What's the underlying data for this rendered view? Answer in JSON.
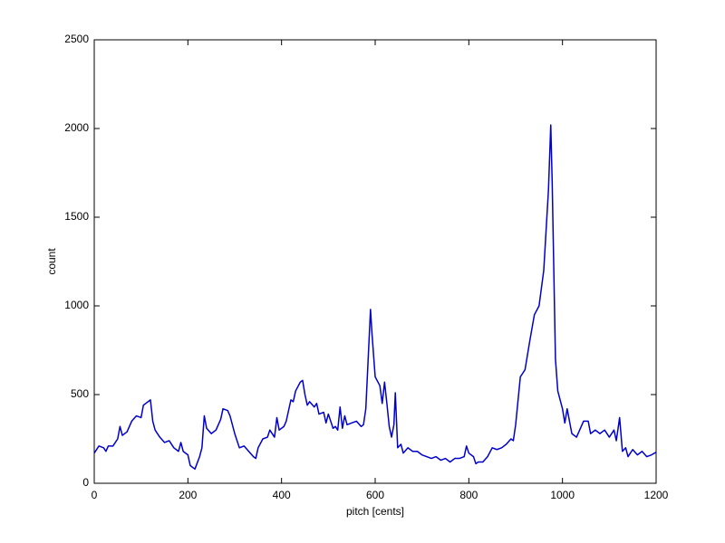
{
  "chart_data": {
    "type": "line",
    "xlabel": "pitch [cents]",
    "ylabel": "count",
    "x": [
      0,
      10,
      20,
      25,
      30,
      40,
      50,
      55,
      60,
      70,
      80,
      90,
      100,
      105,
      110,
      120,
      125,
      130,
      140,
      150,
      160,
      170,
      180,
      185,
      190,
      200,
      205,
      215,
      225,
      230,
      235,
      240,
      250,
      260,
      270,
      275,
      285,
      290,
      300,
      310,
      320,
      330,
      340,
      345,
      350,
      360,
      370,
      375,
      385,
      390,
      395,
      405,
      410,
      420,
      425,
      430,
      440,
      445,
      450,
      455,
      460,
      470,
      475,
      480,
      490,
      495,
      500,
      510,
      515,
      520,
      525,
      530,
      535,
      540,
      550,
      560,
      570,
      575,
      580,
      585,
      590,
      593,
      600,
      610,
      615,
      620,
      625,
      630,
      635,
      640,
      643,
      648,
      655,
      660,
      670,
      680,
      690,
      700,
      710,
      720,
      730,
      740,
      750,
      760,
      770,
      780,
      790,
      795,
      800,
      810,
      815,
      820,
      830,
      840,
      850,
      860,
      870,
      880,
      890,
      895,
      900,
      910,
      915,
      920,
      930,
      940,
      950,
      960,
      970,
      975,
      978,
      985,
      990,
      1000,
      1005,
      1010,
      1015,
      1020,
      1030,
      1040,
      1045,
      1055,
      1060,
      1070,
      1080,
      1090,
      1100,
      1110,
      1115,
      1122,
      1128,
      1135,
      1140,
      1150,
      1160,
      1170,
      1180,
      1190,
      1200
    ],
    "series": [
      {
        "name": "count",
        "color": "#0000cc",
        "values": [
          170,
          210,
          200,
          180,
          210,
          210,
          250,
          320,
          270,
          290,
          350,
          380,
          370,
          440,
          450,
          470,
          350,
          300,
          260,
          230,
          240,
          200,
          180,
          230,
          180,
          160,
          100,
          80,
          150,
          200,
          380,
          310,
          280,
          300,
          360,
          420,
          410,
          380,
          280,
          200,
          210,
          180,
          150,
          140,
          200,
          250,
          260,
          300,
          260,
          370,
          300,
          320,
          350,
          470,
          460,
          520,
          570,
          580,
          500,
          440,
          460,
          430,
          450,
          390,
          400,
          340,
          390,
          310,
          320,
          300,
          430,
          310,
          380,
          330,
          340,
          350,
          320,
          330,
          420,
          700,
          980,
          850,
          600,
          550,
          450,
          570,
          450,
          320,
          260,
          330,
          510,
          200,
          220,
          170,
          200,
          180,
          180,
          160,
          150,
          140,
          150,
          130,
          140,
          120,
          140,
          140,
          150,
          210,
          170,
          150,
          110,
          120,
          120,
          150,
          200,
          190,
          200,
          220,
          250,
          240,
          330,
          600,
          620,
          640,
          800,
          950,
          1000,
          1200,
          1650,
          2020,
          1700,
          700,
          520,
          420,
          340,
          420,
          350,
          280,
          260,
          320,
          350,
          350,
          280,
          300,
          280,
          300,
          260,
          300,
          240,
          370,
          180,
          200,
          150,
          190,
          160,
          180,
          150,
          160,
          175
        ]
      }
    ],
    "xlim": [
      0,
      1200
    ],
    "xticks": [
      0,
      200,
      400,
      600,
      800,
      1000,
      1200
    ],
    "ylim": [
      0,
      2500
    ],
    "yticks": [
      0,
      500,
      1000,
      1500,
      2000,
      2500
    ],
    "grid": false
  }
}
